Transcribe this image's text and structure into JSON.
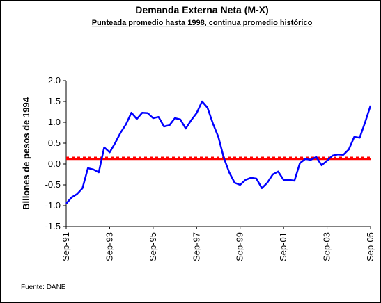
{
  "chart_data": {
    "type": "line",
    "title": "Demanda Externa Neta (M-X)",
    "subtitle": "Punteada promedio hasta 1998, continua promedio histórico",
    "y_label": "Billones de pesos de 1994",
    "source": "Fuente: DANE",
    "categories": [
      "Sep-91",
      null,
      null,
      null,
      null,
      null,
      null,
      null,
      "Sep-93",
      null,
      null,
      null,
      null,
      null,
      null,
      null,
      "Sep-95",
      null,
      null,
      null,
      null,
      null,
      null,
      null,
      "Sep-97",
      null,
      null,
      null,
      null,
      null,
      null,
      null,
      "Sep-99",
      null,
      null,
      null,
      null,
      null,
      null,
      null,
      "Sep-01",
      null,
      null,
      null,
      null,
      null,
      null,
      null,
      "Sep-03",
      null,
      null,
      null,
      null,
      null,
      null,
      null,
      "Sep-05"
    ],
    "series": [
      {
        "color": "#0000ff",
        "values": [
          -0.95,
          -0.8,
          -0.72,
          -0.58,
          -0.1,
          -0.13,
          -0.2,
          0.4,
          0.28,
          0.5,
          0.75,
          0.95,
          1.23,
          1.08,
          1.23,
          1.22,
          1.1,
          1.13,
          0.9,
          0.93,
          1.1,
          1.07,
          0.85,
          1.05,
          1.22,
          1.5,
          1.35,
          0.97,
          0.65,
          0.15,
          -0.2,
          -0.45,
          -0.5,
          -0.38,
          -0.33,
          -0.35,
          -0.58,
          -0.45,
          -0.25,
          -0.18,
          -0.38,
          -0.38,
          -0.4,
          0.02,
          0.12,
          0.1,
          0.17,
          -0.03,
          0.08,
          0.2,
          0.23,
          0.22,
          0.35,
          0.65,
          0.63,
          1.0,
          1.4
        ]
      }
    ],
    "reference_lines": [
      {
        "value": 0.15,
        "style": "dotted",
        "color": "#ff0000"
      },
      {
        "value": 0.12,
        "style": "solid",
        "color": "#ff0000"
      }
    ],
    "ylim": [
      -1.5,
      2.0
    ],
    "yticks": [
      {
        "value": -1.5,
        "label": "-1.5"
      },
      {
        "value": -1.0,
        "label": "-1.0"
      },
      -0.5,
      {
        "value": 0,
        "label": "0.0"
      },
      0.5,
      {
        "value": 1.0,
        "label": "1.0"
      },
      1.5,
      {
        "value": 2.0,
        "label": "2.0"
      }
    ]
  }
}
